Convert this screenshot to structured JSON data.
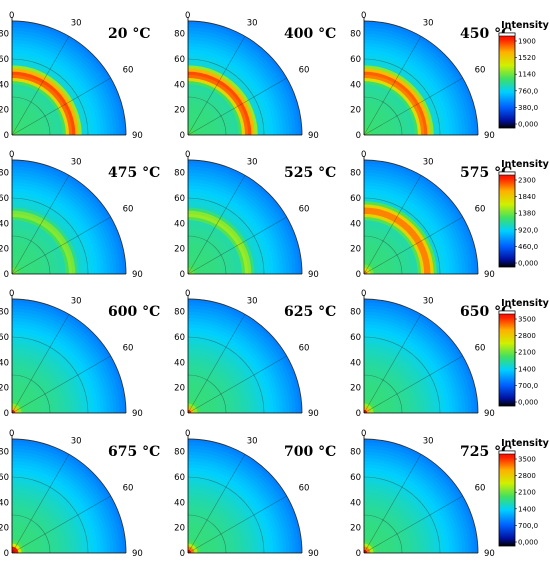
{
  "chart_data": {
    "type": "heatmap",
    "description_free": true,
    "temperature_unit": "°C",
    "radial_ticks": [
      "0",
      "20",
      "40",
      "60",
      "80"
    ],
    "angular_ticks": [
      "0",
      "30",
      "60",
      "90"
    ],
    "rows": [
      {
        "colorbar": {
          "title": "Intensity",
          "ticks": [
            "1900",
            "1520",
            "1140",
            "760,0",
            "380,0",
            "0,000"
          ]
        },
        "panels": [
          {
            "label": "20 °C",
            "peak_radius": 48,
            "peak_intensity": 0.92,
            "center_hot": 0.05
          },
          {
            "label": "400 °C",
            "peak_radius": 48,
            "peak_intensity": 0.92,
            "center_hot": 0.05
          },
          {
            "label": "450 °C",
            "peak_radius": 48,
            "peak_intensity": 0.9,
            "center_hot": 0.05
          }
        ]
      },
      {
        "colorbar": {
          "title": "Intensity",
          "ticks": [
            "2300",
            "1840",
            "1380",
            "920,0",
            "460,0",
            "0,000"
          ]
        },
        "panels": [
          {
            "label": "475 °C",
            "peak_radius": 47,
            "peak_intensity": 0.6,
            "center_hot": 0.1
          },
          {
            "label": "525 °C",
            "peak_radius": 47,
            "peak_intensity": 0.62,
            "center_hot": 0.1
          },
          {
            "label": "575 °C",
            "peak_radius": 50,
            "peak_intensity": 0.88,
            "center_hot": 0.35
          }
        ]
      },
      {
        "colorbar": {
          "title": "Intensity",
          "ticks": [
            "3500",
            "2800",
            "2100",
            "1400",
            "700,0",
            "0,000"
          ]
        },
        "panels": [
          {
            "label": "600 °C",
            "peak_radius": 40,
            "peak_intensity": 0.4,
            "center_hot": 0.45
          },
          {
            "label": "625 °C",
            "peak_radius": 40,
            "peak_intensity": 0.42,
            "center_hot": 0.45
          },
          {
            "label": "650 °C",
            "peak_radius": 40,
            "peak_intensity": 0.42,
            "center_hot": 0.5
          }
        ]
      },
      {
        "colorbar": {
          "title": "Intensity",
          "ticks": [
            "3500",
            "2800",
            "2100",
            "1400",
            "700,0",
            "0,000"
          ]
        },
        "panels": [
          {
            "label": "675 °C",
            "peak_radius": 40,
            "peak_intensity": 0.45,
            "center_hot": 0.8
          },
          {
            "label": "700 °C",
            "peak_radius": 40,
            "peak_intensity": 0.45,
            "center_hot": 0.6
          },
          {
            "label": "725 °C",
            "peak_radius": 40,
            "peak_intensity": 0.45,
            "center_hot": 0.6
          }
        ]
      }
    ]
  }
}
